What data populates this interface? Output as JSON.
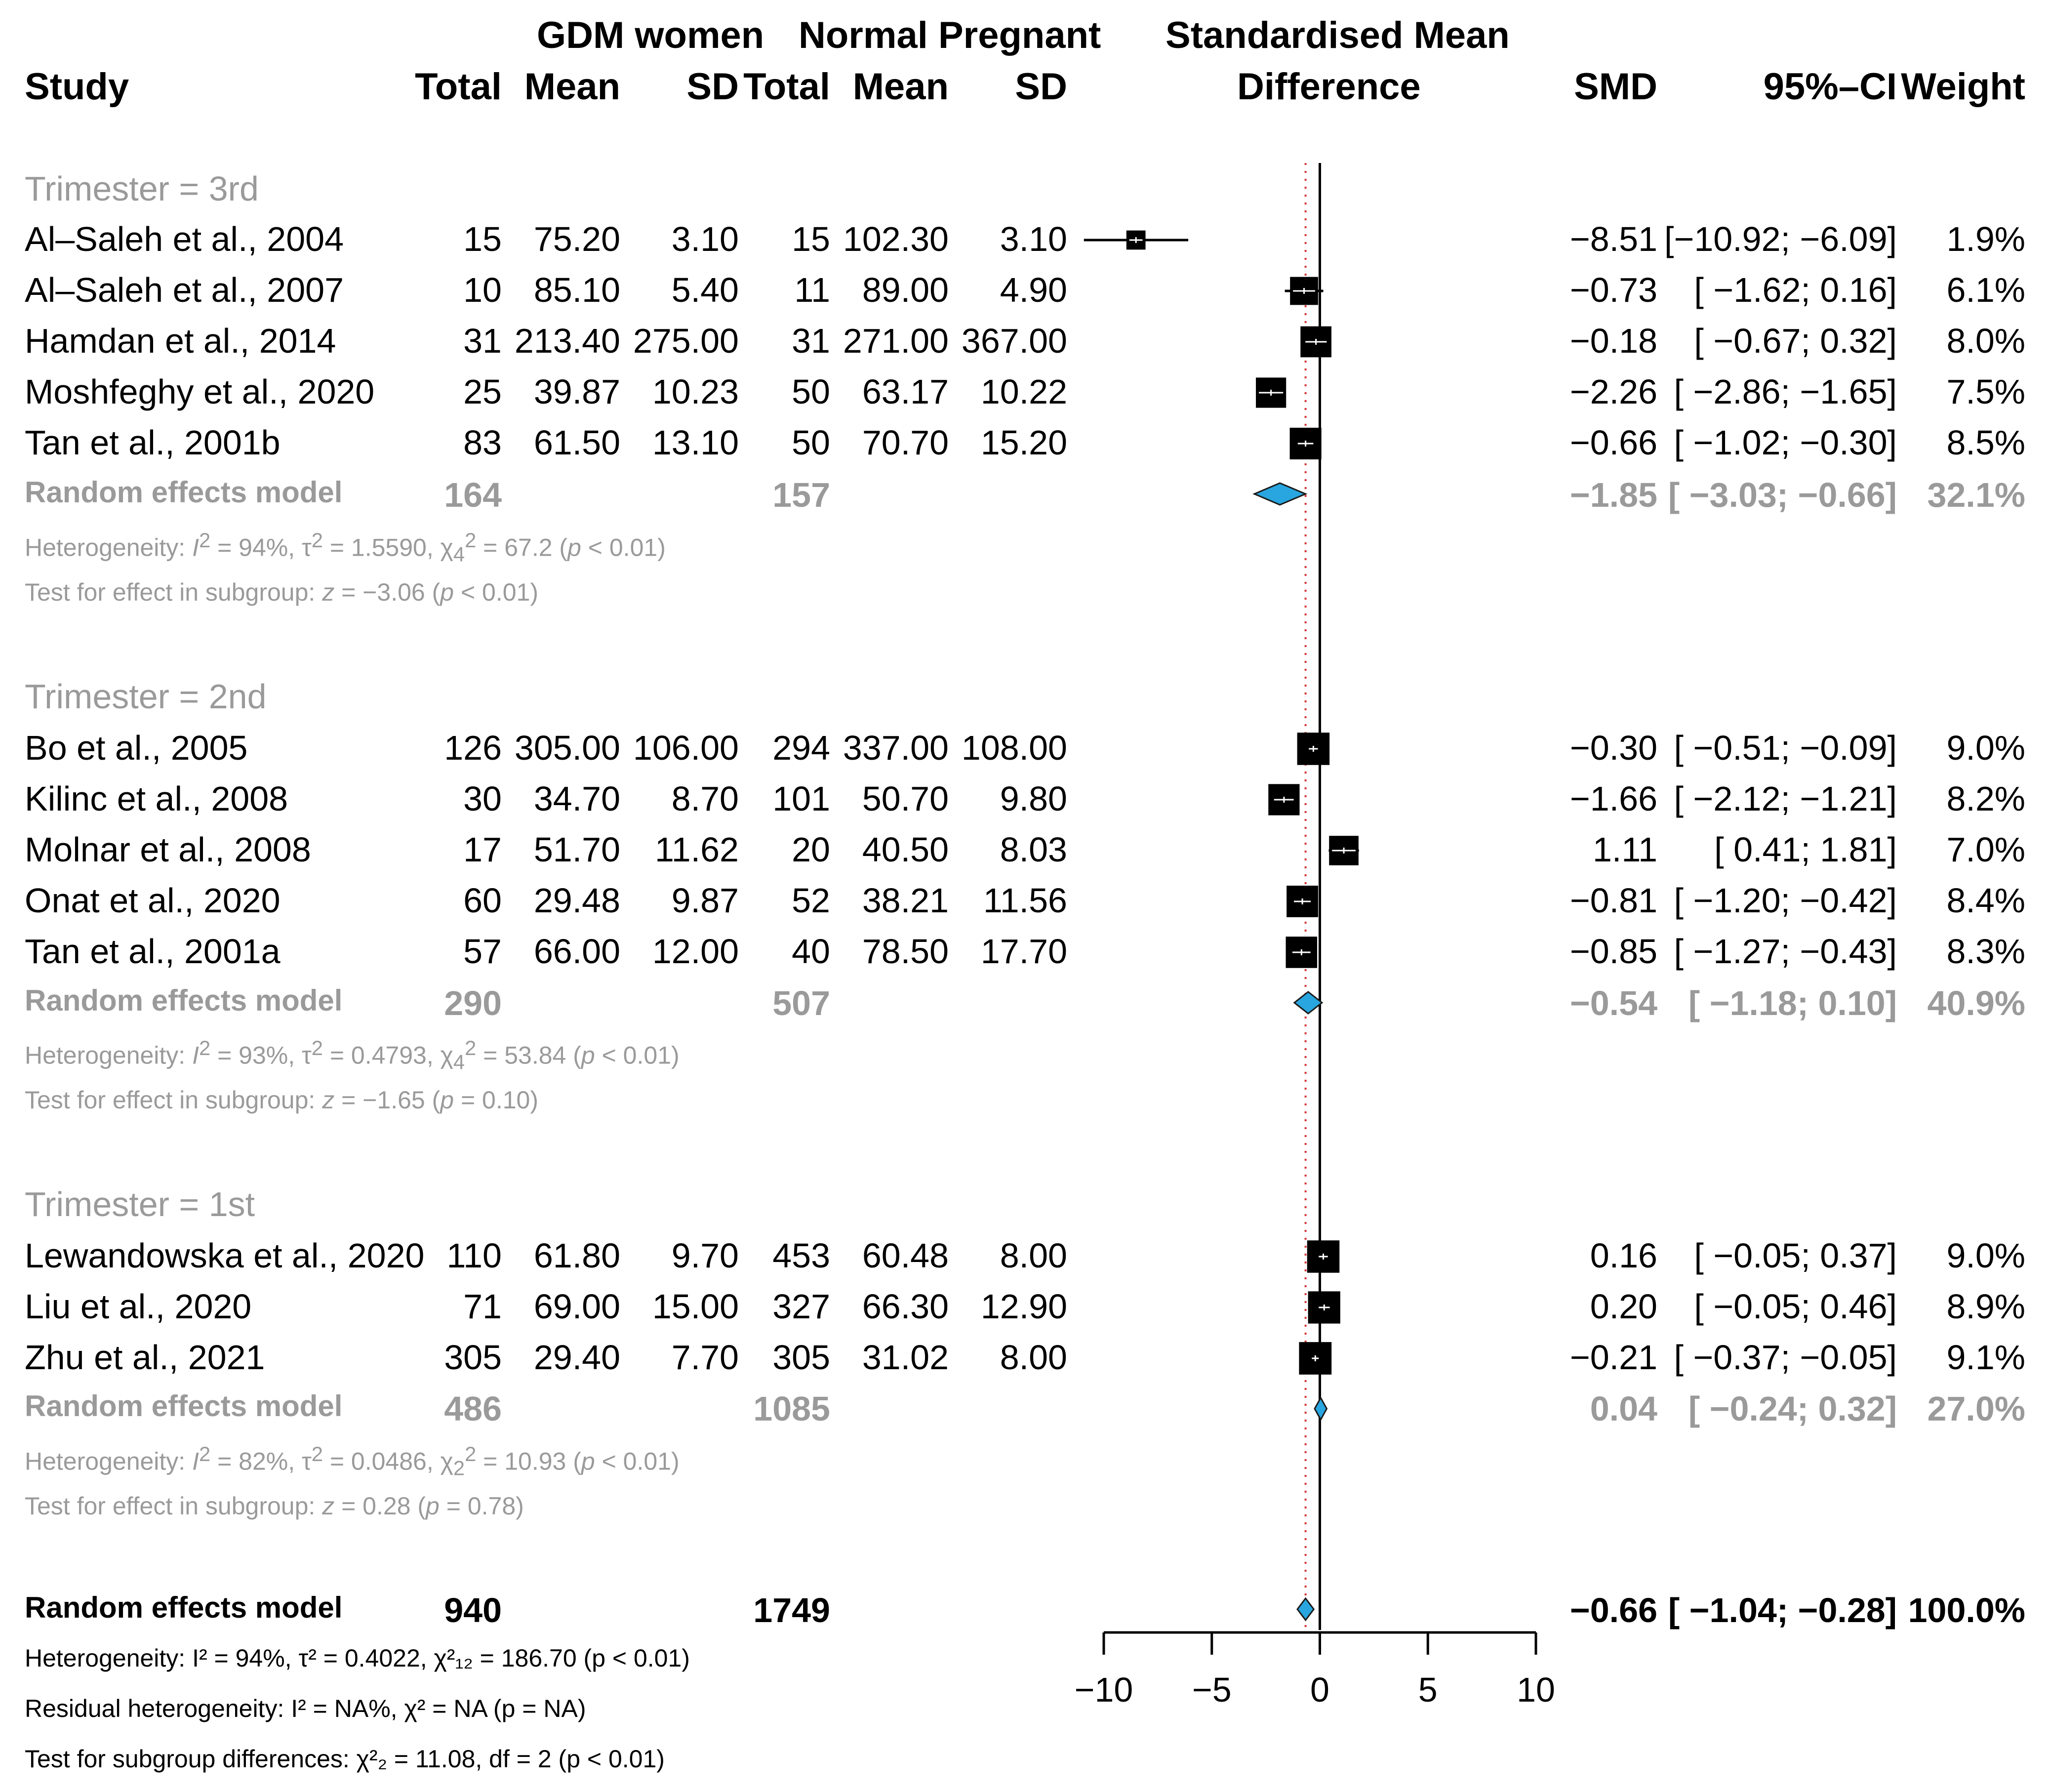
{
  "header": {
    "study": "Study",
    "group1": "GDM women",
    "group2": "Normal Pregnant",
    "total": "Total",
    "mean": "Mean",
    "sd": "SD",
    "plot_title_line1": "Standardised Mean",
    "plot_title_line2": "Difference",
    "smd": "SMD",
    "ci": "95%–CI",
    "weight": "Weight"
  },
  "subgroups": [
    {
      "label": "Trimester = 3rd",
      "studies": [
        {
          "name": "Al–Saleh et al., 2004",
          "n1": "15",
          "m1": "75.20",
          "sd1": "3.10",
          "n2": "15",
          "m2": "102.30",
          "sd2": "3.10",
          "smd": "−8.51",
          "ci": "[−10.92; −6.09]",
          "w": "1.9%"
        },
        {
          "name": "Al–Saleh et al., 2007",
          "n1": "10",
          "m1": "85.10",
          "sd1": "5.40",
          "n2": "11",
          "m2": "89.00",
          "sd2": "4.90",
          "smd": "−0.73",
          "ci": "[ −1.62;  0.16]",
          "w": "6.1%"
        },
        {
          "name": "Hamdan et al., 2014",
          "n1": "31",
          "m1": "213.40",
          "sd1": "275.00",
          "n2": "31",
          "m2": "271.00",
          "sd2": "367.00",
          "smd": "−0.18",
          "ci": "[ −0.67;  0.32]",
          "w": "8.0%"
        },
        {
          "name": "Moshfeghy et al., 2020",
          "n1": "25",
          "m1": "39.87",
          "sd1": "10.23",
          "n2": "50",
          "m2": "63.17",
          "sd2": "10.22",
          "smd": "−2.26",
          "ci": "[ −2.86; −1.65]",
          "w": "7.5%"
        },
        {
          "name": "Tan et al., 2001b",
          "n1": "83",
          "m1": "61.50",
          "sd1": "13.10",
          "n2": "50",
          "m2": "70.70",
          "sd2": "15.20",
          "smd": "−0.66",
          "ci": "[ −1.02; −0.30]",
          "w": "8.5%"
        }
      ],
      "model": {
        "label": "Random effects model",
        "n1": "164",
        "n2": "157",
        "smd": "−1.85",
        "ci": "[ −3.03; −0.66]",
        "w": "32.1%"
      },
      "het": {
        "pre": "Heterogeneity: ",
        "i2": "I",
        "i2s": "2",
        "a": " = 94%, τ",
        "t2s": "2",
        "b": " = 1.5590, χ",
        "c2sub": "4",
        "c2sup": "2",
        "c": " = 67.2 (",
        "p": "p",
        " d": " < 0.01)"
      },
      "test": {
        "pre": "Test for effect in subgroup: ",
        "z": "z",
        "mid": " = −3.06 (",
        "p": "p",
        "end": " < 0.01)"
      }
    },
    {
      "label": "Trimester = 2nd",
      "studies": [
        {
          "name": "Bo et al., 2005",
          "n1": "126",
          "m1": "305.00",
          "sd1": "106.00",
          "n2": "294",
          "m2": "337.00",
          "sd2": "108.00",
          "smd": "−0.30",
          "ci": "[ −0.51; −0.09]",
          "w": "9.0%"
        },
        {
          "name": "Kilinc et al., 2008",
          "n1": "30",
          "m1": "34.70",
          "sd1": "8.70",
          "n2": "101",
          "m2": "50.70",
          "sd2": "9.80",
          "smd": "−1.66",
          "ci": "[ −2.12; −1.21]",
          "w": "8.2%"
        },
        {
          "name": "Molnar et al., 2008",
          "n1": "17",
          "m1": "51.70",
          "sd1": "11.62",
          "n2": "20",
          "m2": "40.50",
          "sd2": "8.03",
          "smd": "1.11",
          "ci": "[  0.41;  1.81]",
          "w": "7.0%"
        },
        {
          "name": "Onat et al., 2020",
          "n1": "60",
          "m1": "29.48",
          "sd1": "9.87",
          "n2": "52",
          "m2": "38.21",
          "sd2": "11.56",
          "smd": "−0.81",
          "ci": "[ −1.20; −0.42]",
          "w": "8.4%"
        },
        {
          "name": "Tan et al., 2001a",
          "n1": "57",
          "m1": "66.00",
          "sd1": "12.00",
          "n2": "40",
          "m2": "78.50",
          "sd2": "17.70",
          "smd": "−0.85",
          "ci": "[ −1.27; −0.43]",
          "w": "8.3%"
        }
      ],
      "model": {
        "label": "Random effects model",
        "n1": "290",
        "n2": "507",
        "smd": "−0.54",
        "ci": "[ −1.18;  0.10]",
        "w": "40.9%"
      },
      "het": {
        "pre": "Heterogeneity: ",
        "i2": "I",
        "i2s": "2",
        "a": " = 93%, τ",
        "t2s": "2",
        "b": " = 0.4793, χ",
        "c2sub": "4",
        "c2sup": "2",
        "c": " = 53.84 (",
        "p": "p",
        "d": " < 0.01)"
      },
      "test": {
        "pre": "Test for effect in subgroup: ",
        "z": "z",
        "mid": " = −1.65 (",
        "p": "p",
        "end": " = 0.10)"
      }
    },
    {
      "label": "Trimester = 1st",
      "studies": [
        {
          "name": "Lewandowska et al., 2020",
          "n1": "110",
          "m1": "61.80",
          "sd1": "9.70",
          "n2": "453",
          "m2": "60.48",
          "sd2": "8.00",
          "smd": "0.16",
          "ci": "[ −0.05;  0.37]",
          "w": "9.0%"
        },
        {
          "name": "Liu et al., 2020",
          "n1": "71",
          "m1": "69.00",
          "sd1": "15.00",
          "n2": "327",
          "m2": "66.30",
          "sd2": "12.90",
          "smd": "0.20",
          "ci": "[ −0.05;  0.46]",
          "w": "8.9%"
        },
        {
          "name": "Zhu et al., 2021",
          "n1": "305",
          "m1": "29.40",
          "sd1": "7.70",
          "n2": "305",
          "m2": "31.02",
          "sd2": "8.00",
          "smd": "−0.21",
          "ci": "[ −0.37; −0.05]",
          "w": "9.1%"
        }
      ],
      "model": {
        "label": "Random effects model",
        "n1": "486",
        "n2": "1085",
        "smd": "0.04",
        "ci": "[ −0.24;  0.32]",
        "w": "27.0%"
      },
      "het": {
        "pre": "Heterogeneity: ",
        "i2": "I",
        "i2s": "2",
        "a": " = 82%, τ",
        "t2s": "2",
        "b": " = 0.0486, χ",
        "c2sub": "2",
        "c2sup": "2",
        "c": " = 10.93 (",
        "p": "p",
        "d": " < 0.01)"
      },
      "test": {
        "pre": "Test for effect in subgroup: ",
        "z": "z",
        "mid": " = 0.28 (",
        "p": "p",
        "end": " = 0.78)"
      }
    }
  ],
  "overall": {
    "label": "Random effects model",
    "n1": "940",
    "n2": "1749",
    "smd": "−0.66",
    "ci": "[ −1.04; −0.28]",
    "w": "100.0%",
    "het": "Heterogeneity: I² = 94%, τ² = 0.4022, χ²₁₂ = 186.70 (p < 0.01)",
    "resid": "Residual heterogeneity: I² = NA%, χ² = NA (p = NA)",
    "subdiff": "Test for subgroup differences: χ²₂ = 11.08, df = 2 (p < 0.01)"
  },
  "chart_data": {
    "type": "forest",
    "title": "Standardised Mean Difference",
    "xlim": [
      -10,
      10
    ],
    "xticks": [
      -10,
      -5,
      0,
      5,
      10
    ],
    "xtick_labels": [
      "−10",
      "−5",
      "0",
      "5",
      "10"
    ],
    "reference_line": 0,
    "overall_line": -0.66,
    "colors": {
      "diamond_fill": "#29a6df",
      "diamond_stroke": "#1a1a1a",
      "overall_line": "#d23a3a",
      "square": "#000000"
    },
    "studies": [
      {
        "name": "Al–Saleh et al., 2004",
        "smd": -8.51,
        "lo": -10.92,
        "hi": -6.09,
        "weight": 1.9
      },
      {
        "name": "Al–Saleh et al., 2007",
        "smd": -0.73,
        "lo": -1.62,
        "hi": 0.16,
        "weight": 6.1
      },
      {
        "name": "Hamdan et al., 2014",
        "smd": -0.18,
        "lo": -0.67,
        "hi": 0.32,
        "weight": 8.0
      },
      {
        "name": "Moshfeghy et al., 2020",
        "smd": -2.26,
        "lo": -2.86,
        "hi": -1.65,
        "weight": 7.5
      },
      {
        "name": "Tan et al., 2001b",
        "smd": -0.66,
        "lo": -1.02,
        "hi": -0.3,
        "weight": 8.5
      },
      {
        "name": "Random effects model (3rd)",
        "smd": -1.85,
        "lo": -3.03,
        "hi": -0.66,
        "weight": 32.1,
        "diamond": true
      },
      {
        "name": "Bo et al., 2005",
        "smd": -0.3,
        "lo": -0.51,
        "hi": -0.09,
        "weight": 9.0
      },
      {
        "name": "Kilinc et al., 2008",
        "smd": -1.66,
        "lo": -2.12,
        "hi": -1.21,
        "weight": 8.2
      },
      {
        "name": "Molnar et al., 2008",
        "smd": 1.11,
        "lo": 0.41,
        "hi": 1.81,
        "weight": 7.0
      },
      {
        "name": "Onat et al., 2020",
        "smd": -0.81,
        "lo": -1.2,
        "hi": -0.42,
        "weight": 8.4
      },
      {
        "name": "Tan et al., 2001a",
        "smd": -0.85,
        "lo": -1.27,
        "hi": -0.43,
        "weight": 8.3
      },
      {
        "name": "Random effects model (2nd)",
        "smd": -0.54,
        "lo": -1.18,
        "hi": 0.1,
        "weight": 40.9,
        "diamond": true
      },
      {
        "name": "Lewandowska et al., 2020",
        "smd": 0.16,
        "lo": -0.05,
        "hi": 0.37,
        "weight": 9.0
      },
      {
        "name": "Liu et al., 2020",
        "smd": 0.2,
        "lo": -0.05,
        "hi": 0.46,
        "weight": 8.9
      },
      {
        "name": "Zhu et al., 2021",
        "smd": -0.21,
        "lo": -0.37,
        "hi": -0.05,
        "weight": 9.1
      },
      {
        "name": "Random effects model (1st)",
        "smd": 0.04,
        "lo": -0.24,
        "hi": 0.32,
        "weight": 27.0,
        "diamond": true
      },
      {
        "name": "Random effects model (overall)",
        "smd": -0.66,
        "lo": -1.04,
        "hi": -0.28,
        "weight": 100.0,
        "diamond": true
      }
    ]
  }
}
